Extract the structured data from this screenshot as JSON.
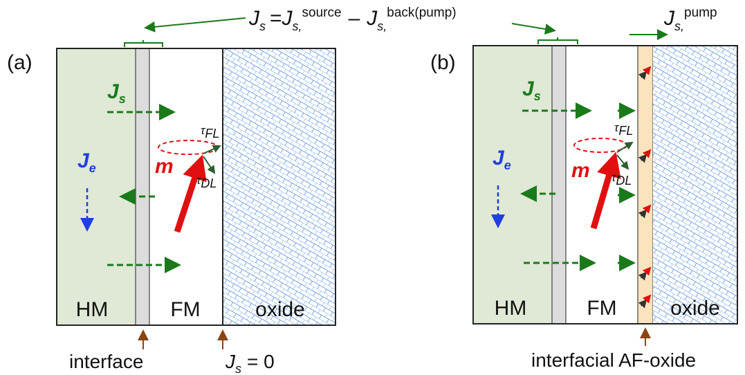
{
  "header": {
    "lhs_symbol": "J",
    "lhs_sub": "s",
    "equals": "=",
    "source_symbol": "J",
    "source_sub": "s,",
    "source_sup": "source",
    "minus": "–",
    "back_symbol": "J",
    "back_sub": "s,",
    "back_sup": "back(pump)"
  },
  "pump": {
    "symbol": "J",
    "sub": "s,",
    "sup": "pump"
  },
  "panels": [
    {
      "label": "(a)",
      "layers": [
        "HM",
        "FM",
        "oxide"
      ],
      "js": {
        "symbol": "J",
        "sub": "s"
      },
      "je": {
        "symbol": "J",
        "sub": "e"
      },
      "m": "m",
      "tau_fl": {
        "symbol": "τ",
        "sub": "FL"
      },
      "tau_dl": {
        "symbol": "τ",
        "sub": "DL"
      },
      "interface": "interface",
      "zero": {
        "symbol": "J",
        "sub": "s",
        "rest": "= 0"
      }
    },
    {
      "label": "(b)",
      "layers": [
        "HM",
        "FM",
        "oxide"
      ],
      "js": {
        "symbol": "J",
        "sub": "s"
      },
      "je": {
        "symbol": "J",
        "sub": "e"
      },
      "m": "m",
      "tau_fl": {
        "symbol": "τ",
        "sub": "FL"
      },
      "tau_dl": {
        "symbol": "τ",
        "sub": "DL"
      },
      "interface": "interfacial AF-oxide"
    }
  ]
}
